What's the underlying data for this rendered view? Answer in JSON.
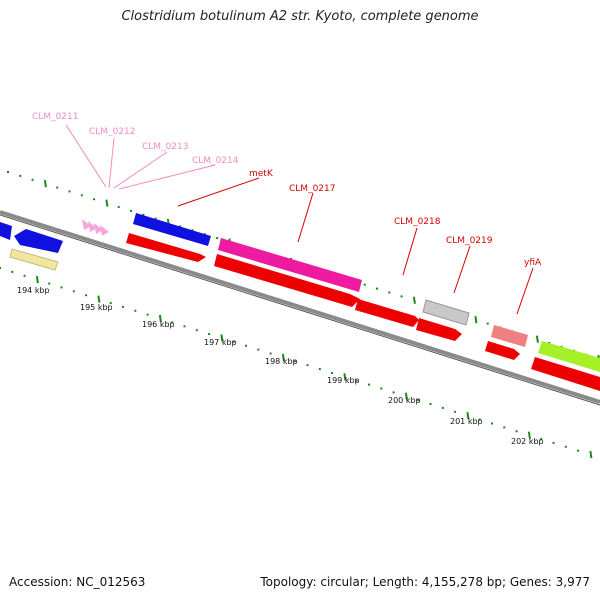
{
  "title": "Clostridium botulinum A2 str. Kyoto, complete genome",
  "accession": "Accession: NC_012563",
  "topology": "Topology: circular; Length: 4,155,278 bp; Genes: 3,977",
  "colors": {
    "backbone": "#8a8a8a",
    "tick": "#1a8a1a",
    "label_pink": "#f08cc0",
    "label_red": "#d40000"
  },
  "scale_labels": [
    "194 kbp",
    "195 kbp",
    "196 kbp",
    "197 kbp",
    "198 kbp",
    "199 kbp",
    "200 kbp",
    "201 kbp",
    "202 kbp"
  ],
  "gene_labels": [
    {
      "text": "CLM_0211",
      "color": "pink"
    },
    {
      "text": "CLM_0212",
      "color": "pink"
    },
    {
      "text": "CLM_0213",
      "color": "pink"
    },
    {
      "text": "CLM_0214",
      "color": "pink"
    },
    {
      "text": "metK",
      "color": "red"
    },
    {
      "text": "CLM_0217",
      "color": "red"
    },
    {
      "text": "CLM_0218",
      "color": "red"
    },
    {
      "text": "CLM_0219",
      "color": "red"
    },
    {
      "text": "yfiA",
      "color": "red"
    }
  ],
  "features": [
    {
      "name": "blue-gene-left",
      "color": "#1010e0"
    },
    {
      "name": "blue-gene-left-2",
      "color": "#1010e0"
    },
    {
      "name": "yellow-gene",
      "color": "#f0e6a0"
    },
    {
      "name": "pink-arrows",
      "color": "#f4a8d8"
    },
    {
      "name": "blue-gene-metK-region",
      "color": "#1010e0"
    },
    {
      "name": "red-gene-metK",
      "color": "#ee0000"
    },
    {
      "name": "magenta-gene-CLM_0217",
      "color": "#ee1aa0"
    },
    {
      "name": "red-gene-long",
      "color": "#ee0000"
    },
    {
      "name": "red-gene-CLM_0218",
      "color": "#ee0000"
    },
    {
      "name": "red-gene-CLM_0218b",
      "color": "#ee0000"
    },
    {
      "name": "gray-gene-CLM_0219",
      "color": "#c8c8c8"
    },
    {
      "name": "salmon-gene-yfiA",
      "color": "#f08080"
    },
    {
      "name": "red-gene-yfiA",
      "color": "#ee0000"
    },
    {
      "name": "green-gene",
      "color": "#a6f028"
    },
    {
      "name": "red-gene-right",
      "color": "#ee0000"
    }
  ]
}
